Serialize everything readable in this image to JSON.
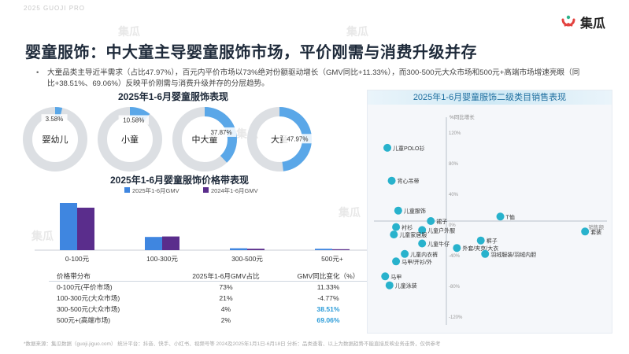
{
  "brand": {
    "top_text": "2025 GUOJI PRO",
    "logo_text": "集瓜",
    "watermarks": [
      "集瓜",
      "集瓜",
      "集瓜",
      "集瓜",
      "集瓜",
      "集瓜"
    ]
  },
  "title": "婴童服饰：中大童主导婴童服饰市场，平价刚需与消费升级并存",
  "bullet": "大童品类主导近半需求（占比47.97%），百元内平价市场以73%绝对份额驱动增长（GMV同比+11.33%），而300-500元大众市场和500元+高端市场增速亮眼（同比+38.51%、69.06%）反映平价刚需与消费升级并存的分层趋势。",
  "footnote": "*数据来源：集瓜数据（guoji.jiguo.com）  统计平台：抖音、快手、小红书、视频号等  2024及2025年1月1日-6月18日  分析：品类查看、以上为数据趋势不能直接反映业务走势，仅供参考",
  "colors": {
    "accent": "#2a9bd8",
    "donut": "#5aa7e8",
    "donut_track": "#dcdfe3",
    "bar_2025": "#3f86e0",
    "bar_2024": "#5a2d8c",
    "scatter": "#28b2cc",
    "highlight": "#2a9bd8"
  },
  "donut_section": {
    "title": "2025年1-6月婴童服饰表现",
    "items": [
      {
        "label": "婴幼儿",
        "pct": 3.58,
        "pct_label": "3.58%"
      },
      {
        "label": "小童",
        "pct": 10.58,
        "pct_label": "10.58%"
      },
      {
        "label": "中大童",
        "pct": 37.87,
        "pct_label": "37.87%"
      },
      {
        "label": "大童",
        "pct": 47.97,
        "pct_label": "47.97%"
      }
    ]
  },
  "bar_section": {
    "title": "2025年1-6月婴童服饰价格带表现"
  },
  "price_table": {
    "headers": [
      "价格带分布",
      "2025年1-6月GMV占比",
      "GMV同比变化（%）"
    ],
    "rows": [
      {
        "band": "0-100元(平价市场)",
        "share": "73%",
        "yoy": "11.33%",
        "hl": false
      },
      {
        "band": "100-300元(大众市场)",
        "share": "21%",
        "yoy": "-4.77%",
        "hl": false
      },
      {
        "band": "300-500元(大众市场)",
        "share": "4%",
        "yoy": "38.51%",
        "hl": true
      },
      {
        "band": "500元+(高端市场)",
        "share": "2%",
        "yoy": "69.06%",
        "hl": true
      }
    ]
  },
  "scatter_section": {
    "title": "2025年1-6月婴童服饰二级类目销售表现"
  },
  "chart_data": [
    {
      "type": "bar",
      "title": "2025年1-6月婴童服饰价格带表现",
      "categories": [
        "0-100元",
        "100-300元",
        "300-500元",
        "500元+"
      ],
      "series": [
        {
          "name": "2025年1-6月GMV",
          "values": [
            100,
            28,
            4,
            3
          ]
        },
        {
          "name": "2024年1-6月GMV",
          "values": [
            90,
            29,
            3,
            2
          ]
        }
      ],
      "ylim": [
        0,
        110
      ],
      "legend": "top-center",
      "grid": false
    },
    {
      "type": "scatter",
      "title": "2025年1-6月婴童服饰二级类目销售表现",
      "ylabel": "%同比增长",
      "xlabel": "销售额",
      "y_ticks": [
        "120%",
        "80%",
        "40%",
        "0%",
        "-40%",
        "-80%",
        "-120%"
      ],
      "x_ticks": [],
      "ylim": [
        -120,
        120
      ],
      "xlim": [
        0,
        100
      ],
      "grid": false,
      "points": [
        {
          "name": "儿童POLO衫",
          "x": 4,
          "y": 98
        },
        {
          "name": "背心吊带",
          "x": 6,
          "y": 54
        },
        {
          "name": "儿童服饰",
          "x": 9,
          "y": 14
        },
        {
          "name": "T恤",
          "x": 56,
          "y": 6
        },
        {
          "name": "裙子",
          "x": 24,
          "y": 0
        },
        {
          "name": "衬衫",
          "x": 8,
          "y": -8
        },
        {
          "name": "儿童户外服",
          "x": 20,
          "y": -12
        },
        {
          "name": "套装",
          "x": 95,
          "y": -14
        },
        {
          "name": "儿童家居服",
          "x": 7,
          "y": -18
        },
        {
          "name": "裤子",
          "x": 47,
          "y": -26
        },
        {
          "name": "儿童牛仔",
          "x": 20,
          "y": -30
        },
        {
          "name": "外套/夹克/大衣",
          "x": 36,
          "y": -36
        },
        {
          "name": "儿童内衣裤",
          "x": 12,
          "y": -44
        },
        {
          "name": "羽绒服装/羽绒内胆",
          "x": 49,
          "y": -44
        },
        {
          "name": "马甲/开衫/外",
          "x": 8,
          "y": -54
        },
        {
          "name": "马甲",
          "x": 3,
          "y": -74
        },
        {
          "name": "儿童泳装",
          "x": 5,
          "y": -86
        }
      ]
    }
  ]
}
